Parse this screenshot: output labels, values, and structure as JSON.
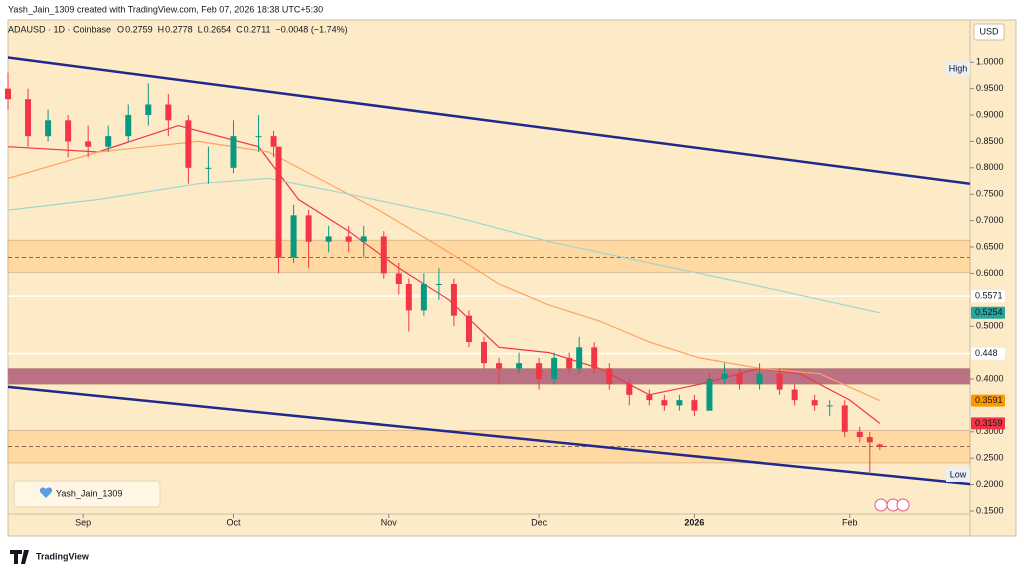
{
  "header": "Yash_Jain_1309 created with TradingView.com, Feb 07, 2026 18:38 UTC+5:30",
  "legend": {
    "symbol": "ADAUSD · 1D · Coinbase",
    "items": [
      {
        "key": "O",
        "value": "0.2759"
      },
      {
        "key": "H",
        "value": "0.2778"
      },
      {
        "key": "L",
        "value": "0.2654"
      },
      {
        "key": "C",
        "value": "0.2711"
      }
    ],
    "change": "−0.0048 (−1.74%)"
  },
  "currency": "USD",
  "axis_labels": {
    "high": "High",
    "low": "Low"
  },
  "watermark": "Yash_Jain_1309",
  "brand": "TradingView",
  "chart_data": {
    "type": "candlestick",
    "up_color": "#089981",
    "down_color": "#f23645",
    "xlim": [
      1,
      193
    ],
    "ylim": [
      0.114,
      1.08
    ],
    "xticks": [
      {
        "value": 16,
        "label": "Sep"
      },
      {
        "value": 46,
        "label": "Oct"
      },
      {
        "value": 77,
        "label": "Nov"
      },
      {
        "value": 107,
        "label": "Dec"
      },
      {
        "value": 138,
        "label": "2026"
      },
      {
        "value": 169,
        "label": "Feb"
      }
    ],
    "yticks": [
      {
        "value": 1.0,
        "label": "1.0000"
      },
      {
        "value": 0.95,
        "label": "0.9500"
      },
      {
        "value": 0.9,
        "label": "0.9000"
      },
      {
        "value": 0.85,
        "label": "0.8500"
      },
      {
        "value": 0.8,
        "label": "0.8000"
      },
      {
        "value": 0.75,
        "label": "0.7500"
      },
      {
        "value": 0.7,
        "label": "0.7000"
      },
      {
        "value": 0.65,
        "label": "0.6500"
      },
      {
        "value": 0.6,
        "label": "0.6000"
      },
      {
        "value": 0.5,
        "label": "0.5000"
      },
      {
        "value": 0.4,
        "label": "0.4000"
      },
      {
        "value": 0.3,
        "label": "0.3000"
      },
      {
        "value": 0.25,
        "label": "0.2500"
      },
      {
        "value": 0.2,
        "label": "0.2000"
      },
      {
        "value": 0.15,
        "label": "0.1500"
      }
    ],
    "x": [
      1,
      5,
      9,
      13,
      17,
      21,
      25,
      29,
      33,
      37,
      41,
      46,
      51,
      54,
      55,
      58,
      61,
      65,
      69,
      72,
      76,
      79,
      81,
      84,
      87,
      90,
      93,
      96,
      99,
      103,
      107,
      110,
      113,
      115,
      118,
      121,
      125,
      129,
      132,
      135,
      138,
      141,
      144,
      147,
      151,
      155,
      158,
      162,
      165,
      168,
      171,
      173,
      175
    ],
    "open": [
      0.95,
      0.93,
      0.86,
      0.89,
      0.85,
      0.84,
      0.86,
      0.9,
      0.92,
      0.89,
      0.8,
      0.8,
      0.86,
      0.86,
      0.84,
      0.63,
      0.71,
      0.66,
      0.67,
      0.66,
      0.67,
      0.6,
      0.58,
      0.53,
      0.58,
      0.58,
      0.52,
      0.47,
      0.43,
      0.42,
      0.43,
      0.4,
      0.44,
      0.42,
      0.46,
      0.42,
      0.39,
      0.37,
      0.36,
      0.35,
      0.36,
      0.34,
      0.4,
      0.41,
      0.39,
      0.41,
      0.38,
      0.36,
      0.35,
      0.35,
      0.3,
      0.29,
      0.2759
    ],
    "high": [
      0.98,
      0.95,
      0.91,
      0.9,
      0.88,
      0.88,
      0.92,
      0.96,
      0.94,
      0.9,
      0.84,
      0.89,
      0.9,
      0.87,
      0.84,
      0.73,
      0.72,
      0.69,
      0.69,
      0.69,
      0.68,
      0.62,
      0.59,
      0.6,
      0.61,
      0.59,
      0.53,
      0.48,
      0.44,
      0.45,
      0.44,
      0.45,
      0.45,
      0.48,
      0.47,
      0.43,
      0.4,
      0.38,
      0.37,
      0.37,
      0.37,
      0.41,
      0.43,
      0.42,
      0.43,
      0.42,
      0.39,
      0.37,
      0.36,
      0.36,
      0.31,
      0.3,
      0.2778
    ],
    "low": [
      0.91,
      0.84,
      0.85,
      0.82,
      0.82,
      0.83,
      0.85,
      0.88,
      0.86,
      0.77,
      0.77,
      0.79,
      0.83,
      0.82,
      0.6,
      0.62,
      0.61,
      0.64,
      0.64,
      0.63,
      0.59,
      0.56,
      0.49,
      0.52,
      0.55,
      0.5,
      0.46,
      0.42,
      0.39,
      0.41,
      0.38,
      0.39,
      0.41,
      0.41,
      0.41,
      0.38,
      0.35,
      0.35,
      0.34,
      0.34,
      0.33,
      0.34,
      0.39,
      0.38,
      0.38,
      0.37,
      0.35,
      0.34,
      0.33,
      0.29,
      0.28,
      0.22,
      0.2654
    ],
    "close": [
      0.93,
      0.86,
      0.89,
      0.85,
      0.84,
      0.86,
      0.9,
      0.92,
      0.89,
      0.8,
      0.8,
      0.86,
      0.86,
      0.84,
      0.63,
      0.71,
      0.66,
      0.67,
      0.66,
      0.67,
      0.6,
      0.58,
      0.53,
      0.58,
      0.58,
      0.52,
      0.47,
      0.43,
      0.42,
      0.43,
      0.4,
      0.44,
      0.42,
      0.46,
      0.42,
      0.39,
      0.37,
      0.36,
      0.35,
      0.36,
      0.34,
      0.4,
      0.41,
      0.39,
      0.41,
      0.38,
      0.36,
      0.35,
      0.35,
      0.3,
      0.29,
      0.28,
      0.2711
    ],
    "lines": [
      {
        "color": "#f23645",
        "x": [
          1,
          19,
          35,
          51,
          59,
          69,
          79,
          89,
          99,
          109,
          119,
          129,
          139,
          151,
          159,
          169,
          175
        ],
        "values": [
          0.84,
          0.83,
          0.88,
          0.84,
          0.74,
          0.68,
          0.61,
          0.55,
          0.46,
          0.45,
          0.42,
          0.37,
          0.39,
          0.42,
          0.41,
          0.36,
          0.3159
        ]
      },
      {
        "color": "#ffa35c",
        "x": [
          1,
          19,
          39,
          53,
          63,
          75,
          89,
          99,
          109,
          119,
          129,
          139,
          151,
          163,
          175
        ],
        "values": [
          0.78,
          0.83,
          0.85,
          0.83,
          0.78,
          0.72,
          0.64,
          0.58,
          0.54,
          0.51,
          0.47,
          0.44,
          0.42,
          0.41,
          0.3591
        ]
      },
      {
        "color": "#9fd6d0",
        "x": [
          1,
          19,
          39,
          53,
          69,
          89,
          109,
          129,
          149,
          175
        ],
        "values": [
          0.72,
          0.74,
          0.77,
          0.78,
          0.75,
          0.71,
          0.66,
          0.62,
          0.58,
          0.5254
        ]
      },
      {
        "color": "#1f2a8c",
        "x": [
          1,
          193
        ],
        "values": [
          1.009,
          0.77
        ]
      },
      {
        "color": "#1f2a8c",
        "x": [
          1,
          193
        ],
        "values": [
          0.385,
          0.201
        ]
      }
    ],
    "zones": [
      {
        "top": 0.663,
        "bottom": 0.602,
        "mid": 0.63,
        "color": "#ffd59b"
      },
      {
        "top": 0.42,
        "bottom": 0.39,
        "color": "#b05a78"
      },
      {
        "top": 0.303,
        "bottom": 0.241,
        "mid": 0.272,
        "color": "#ffd59b"
      }
    ],
    "levels": [
      0.5571,
      0.448
    ],
    "price_labels": [
      {
        "value": 0.5571,
        "color": "#ffffff",
        "text_color": "#131722"
      },
      {
        "value": 0.5254,
        "color": "#26a69a",
        "text_color": "#ffffff"
      },
      {
        "value": 0.448,
        "color": "#ffffff",
        "text_color": "#131722"
      },
      {
        "value": 0.3591,
        "color": "#ff9800",
        "text_color": "#ffffff"
      },
      {
        "value": 0.3159,
        "color": "#f23645",
        "text_color": "#ffffff"
      }
    ]
  }
}
